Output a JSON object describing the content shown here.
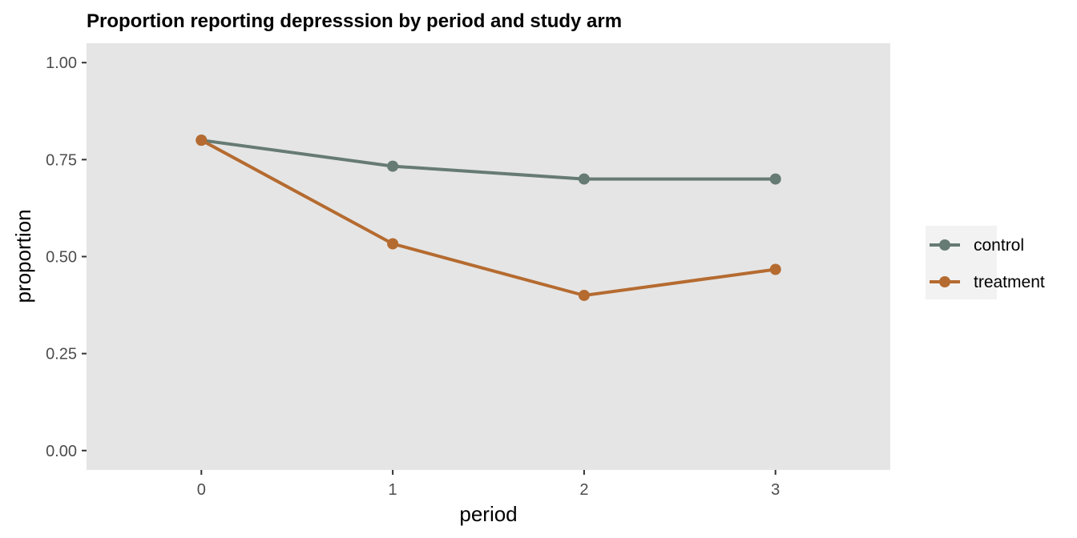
{
  "chart_data": {
    "type": "line",
    "title": "Proportion reporting depresssion by period and study arm",
    "xlabel": "period",
    "ylabel": "proportion",
    "x": [
      0,
      1,
      2,
      3
    ],
    "x_tick_labels": [
      "0",
      "1",
      "2",
      "3"
    ],
    "xlim": [
      -0.6,
      3.6
    ],
    "ylim": [
      -0.05,
      1.05
    ],
    "y_ticks": [
      0,
      0.25,
      0.5,
      0.75,
      1.0
    ],
    "y_tick_labels": [
      "0.00",
      "0.25",
      "0.50",
      "0.75",
      "1.00"
    ],
    "grid": false,
    "legend_position": "right",
    "series": [
      {
        "name": "control",
        "color": "#667b73",
        "values": [
          0.8,
          0.733,
          0.7,
          0.7
        ]
      },
      {
        "name": "treatment",
        "color": "#b56b30",
        "values": [
          0.8,
          0.533,
          0.4,
          0.467
        ]
      }
    ],
    "panel_background": "#e5e5e5",
    "legend_background": "#f2f2f2"
  }
}
